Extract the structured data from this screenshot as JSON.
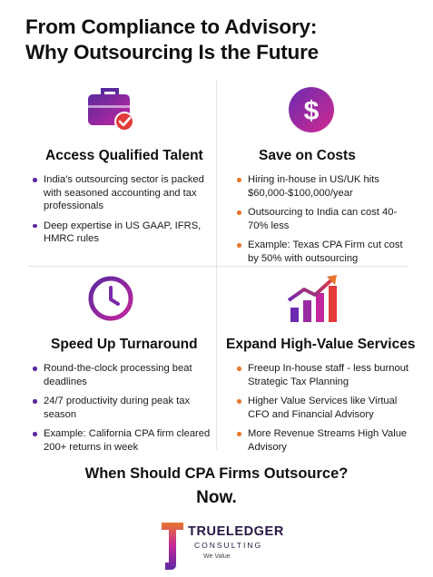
{
  "title": {
    "line1": "From Compliance to Advisory:",
    "line2": "Why Outsourcing Is the Future"
  },
  "colors": {
    "purple": "#5b2a9e",
    "magenta": "#c2269d",
    "orange": "#e8772e",
    "red": "#e23b3b"
  },
  "sections": [
    {
      "heading": "Access Qualified Talent",
      "icon": "briefcase-check-icon",
      "bullets": [
        "India's outsourcing sector is packed with seasoned accounting and tax professionals",
        "Deep expertise in US GAAP, IFRS, HMRC rules"
      ]
    },
    {
      "heading": "Save on Costs",
      "icon": "dollar-coin-icon",
      "bullets": [
        "Hiring in-house in US/UK hits $60,000-$100,000/year",
        "Outsourcing to India can cost 40-70% less",
        "Example: Texas CPA Firm cut cost by 50% with outsourcing"
      ]
    },
    {
      "heading": "Speed Up Turnaround",
      "icon": "clock-icon",
      "bullets": [
        "Round-the-clock processing beat deadlines",
        "24/7 productivity during peak tax season",
        "Example: California CPA firm cleared 200+ returns in week"
      ]
    },
    {
      "heading": "Expand High-Value Services",
      "icon": "growth-chart-icon",
      "bullets": [
        "Freeup In-house staff - less burnout Strategic Tax Planning",
        "Higher Value Services like Virtual CFO and Financial Advisory",
        "More Revenue Streams High Value Advisory"
      ]
    }
  ],
  "cta": {
    "question": "When Should CPA Firms Outsource?",
    "answer": "Now."
  },
  "brand": {
    "name": "TRUELEDGER",
    "sub": "CONSULTING",
    "tagline": "We Value"
  }
}
